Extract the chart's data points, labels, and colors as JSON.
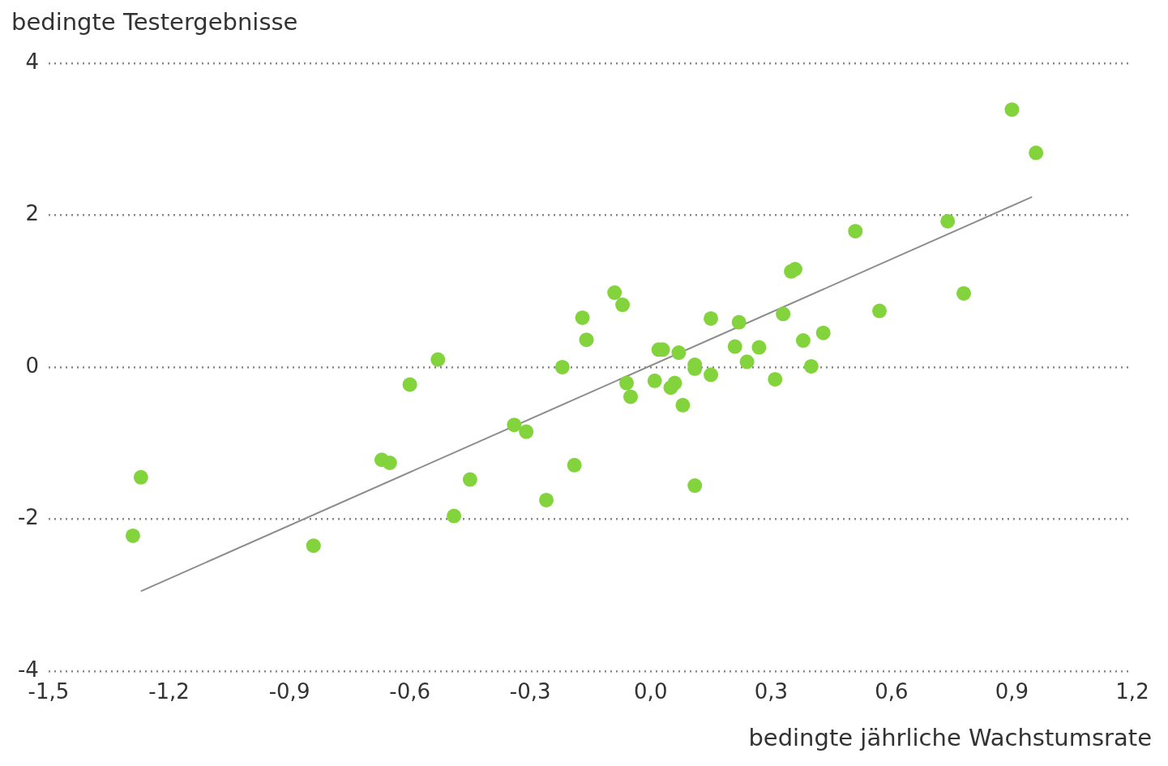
{
  "chart_data": {
    "type": "scatter",
    "xlabel": "bedingte jährliche Wachstumsrate",
    "ylabel": "bedingte Testergebnisse",
    "xlim": [
      -1.5,
      1.2
    ],
    "xticks": [
      {
        "value": -1.5,
        "label": "-1,5"
      },
      {
        "value": -1.2,
        "label": "-1,2"
      },
      {
        "value": -0.9,
        "label": "-0,9"
      },
      {
        "value": -0.6,
        "label": "-0,6"
      },
      {
        "value": -0.3,
        "label": "-0,3"
      },
      {
        "value": 0,
        "label": "0,0"
      },
      {
        "value": 0.3,
        "label": "0,3"
      },
      {
        "value": 0.6,
        "label": "0,6"
      },
      {
        "value": 0.9,
        "label": "0,9"
      },
      {
        "value": 1.2,
        "label": "1,2"
      }
    ],
    "ylim": [
      -4,
      4
    ],
    "yticks": [
      -4,
      -2,
      0,
      2,
      4
    ],
    "grid": "y",
    "legend": false,
    "marker": "circle",
    "series": [
      {
        "type": "scatter",
        "color": "#82d33c",
        "x": [
          -1.29,
          -1.27,
          -0.84,
          -0.67,
          -0.65,
          -0.6,
          -0.53,
          -0.49,
          -0.45,
          -0.34,
          -0.31,
          -0.26,
          -0.22,
          -0.19,
          -0.17,
          -0.16,
          -0.09,
          -0.07,
          -0.06,
          -0.05,
          0.01,
          0.02,
          0.03,
          0.05,
          0.06,
          0.07,
          0.08,
          0.11,
          0.11,
          0.11,
          0.15,
          0.15,
          0.21,
          0.22,
          0.24,
          0.27,
          0.31,
          0.33,
          0.35,
          0.36,
          0.38,
          0.4,
          0.43,
          0.51,
          0.57,
          0.74,
          0.78,
          0.9,
          0.96
        ],
        "values": [
          -2.22,
          -1.45,
          -2.35,
          -1.22,
          -1.26,
          -0.23,
          0.1,
          -1.96,
          -1.48,
          -0.76,
          -0.85,
          -1.75,
          0,
          -1.29,
          0.65,
          0.36,
          0.98,
          0.82,
          -0.21,
          -0.39,
          -0.18,
          0.23,
          0.23,
          -0.27,
          -0.21,
          0.19,
          -0.5,
          -0.02,
          0.03,
          -1.56,
          0.64,
          -0.1,
          0.27,
          0.59,
          0.07,
          0.26,
          -0.16,
          0.7,
          1.26,
          1.29,
          0.35,
          0.01,
          0.45,
          1.79,
          0.74,
          1.92,
          0.97,
          3.39,
          2.82
        ]
      },
      {
        "type": "line",
        "color": "#8c8c8c",
        "line_style": "solid",
        "marker": "none",
        "x": [
          -1.27,
          0.95
        ],
        "values": [
          -2.95,
          2.24
        ]
      }
    ]
  }
}
